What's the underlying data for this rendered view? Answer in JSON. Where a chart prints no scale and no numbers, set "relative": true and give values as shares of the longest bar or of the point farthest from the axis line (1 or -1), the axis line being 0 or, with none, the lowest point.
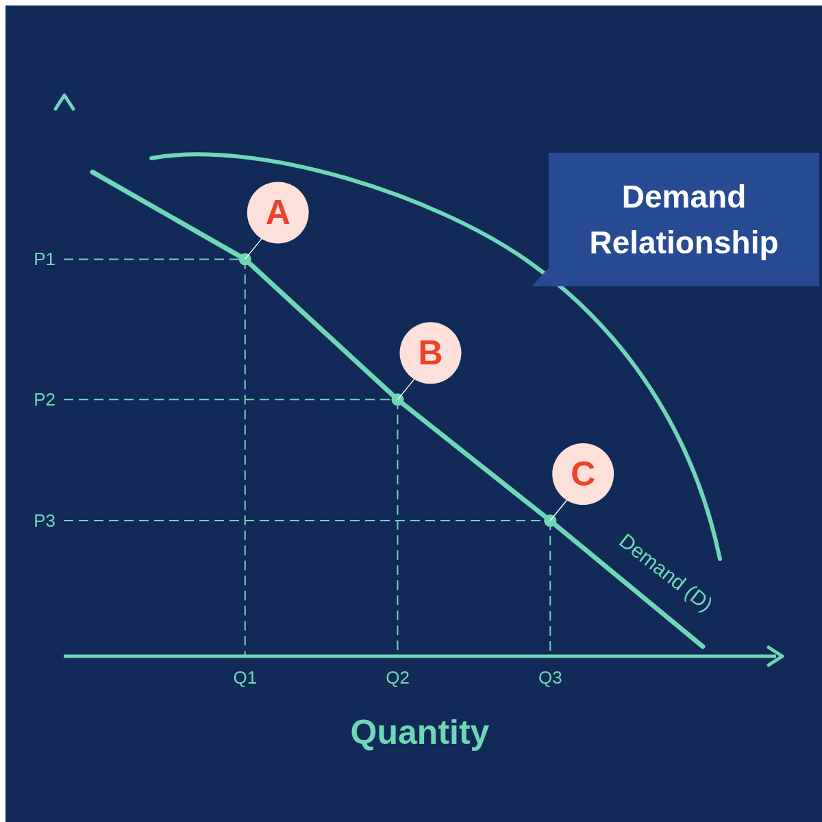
{
  "chart_data": {
    "type": "line",
    "title": "Demand Relationship",
    "xlabel": "Quantity",
    "relative": true,
    "categories": [
      null,
      "Q1",
      "Q2",
      "Q3",
      null
    ],
    "series": [
      {
        "name": "Demand (D)",
        "color": "#6fd6b6",
        "values": [
          1,
          0.82,
          0.53,
          0.28,
          0.02
        ]
      },
      {
        "type": "scatter",
        "color": "#6fd6b6",
        "values": [
          null,
          0.82,
          0.53,
          0.28,
          null
        ]
      }
    ],
    "annotations": [
      "P1",
      "P2",
      "P3",
      "A",
      "B",
      "C"
    ]
  }
}
